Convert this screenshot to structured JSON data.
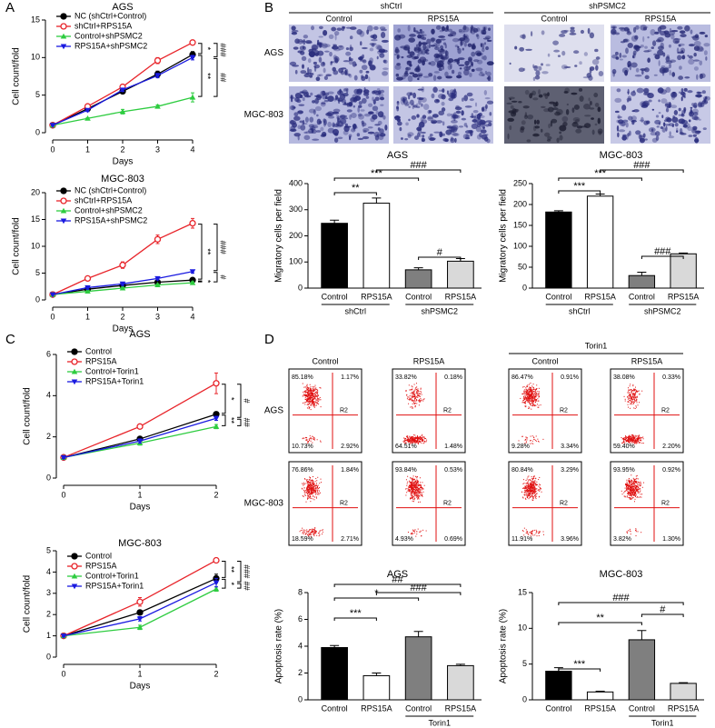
{
  "panel_labels": [
    "A",
    "B",
    "C",
    "D"
  ],
  "micrographs": {
    "groups": [
      "shCtrl",
      "shPSMC2"
    ],
    "columns": [
      "Control",
      "RPS15A",
      "Control",
      "RPS15A"
    ],
    "rows": [
      "AGS",
      "MGC-803"
    ]
  },
  "flow": {
    "group_label": "Torin1",
    "columns": [
      "Control",
      "RPS15A",
      "Control",
      "RPS15A"
    ],
    "gate_label": "R2",
    "rows": [
      {
        "label": "AGS",
        "plots": [
          [
            "85.18%",
            "1.17%",
            "10.73%",
            "2.92%"
          ],
          [
            "33.82%",
            "0.18%",
            "64.51%",
            "1.48%"
          ],
          [
            "86.47%",
            "0.91%",
            "9.28%",
            "3.34%"
          ],
          [
            "38.08%",
            "0.33%",
            "59.40%",
            "2.20%"
          ]
        ]
      },
      {
        "label": "MGC-803",
        "plots": [
          [
            "76.86%",
            "1.84%",
            "18.59%",
            "2.71%"
          ],
          [
            "93.84%",
            "0.53%",
            "4.93%",
            "0.69%"
          ],
          [
            "80.84%",
            "3.29%",
            "11.91%",
            "3.96%"
          ],
          [
            "93.95%",
            "0.92%",
            "3.82%",
            "1.30%"
          ]
        ]
      }
    ]
  },
  "chart_data": [
    {
      "type": "line",
      "title": "AGS",
      "x_label": "Days",
      "y_label": "Cell count/fold",
      "x": [
        0,
        1,
        2,
        3,
        4
      ],
      "xlim": [
        0,
        4
      ],
      "xticks": [
        0,
        1,
        2,
        3,
        4
      ],
      "ylim": [
        0,
        15
      ],
      "yticks": [
        0,
        5,
        10,
        15
      ],
      "series": [
        {
          "name": "NC (shCtrl+Control)",
          "color": "#000000",
          "marker": "circle",
          "values": [
            1,
            3.2,
            5.5,
            7.8,
            10.4
          ],
          "errors": [
            0.05,
            0.2,
            0.3,
            0.4,
            0.4
          ]
        },
        {
          "name": "shCtrl+RPS15A",
          "color": "#e8242a",
          "marker": "open-circle",
          "values": [
            1,
            3.5,
            6.1,
            9.6,
            12.0
          ],
          "errors": [
            0.05,
            0.2,
            0.3,
            0.4,
            0.3
          ]
        },
        {
          "name": "Control+shPSMC2",
          "color": "#2ecc40",
          "marker": "triangle-up",
          "values": [
            1,
            1.9,
            2.8,
            3.5,
            4.7
          ],
          "errors": [
            0.05,
            0.1,
            0.3,
            0.2,
            0.6
          ]
        },
        {
          "name": "RPS15A+shPSMC2",
          "color": "#1a1ae0",
          "marker": "triangle-down",
          "values": [
            1,
            3.0,
            5.7,
            7.6,
            10.0
          ],
          "errors": [
            0.05,
            0.2,
            0.2,
            0.3,
            0.3
          ]
        }
      ],
      "annotations": [
        "*",
        "###",
        "**",
        "##"
      ]
    },
    {
      "type": "line",
      "title": "MGC-803",
      "x_label": "Days",
      "y_label": "Cell count/fold",
      "x": [
        0,
        1,
        2,
        3,
        4
      ],
      "xlim": [
        0,
        4
      ],
      "xticks": [
        0,
        1,
        2,
        3,
        4
      ],
      "ylim": [
        0,
        20
      ],
      "yticks": [
        0,
        5,
        10,
        15,
        20
      ],
      "series": [
        {
          "name": "NC (shCtrl+Control)",
          "color": "#000000",
          "marker": "circle",
          "values": [
            1,
            2.0,
            2.7,
            3.3,
            3.7
          ],
          "errors": [
            0.05,
            0.2,
            0.2,
            0.2,
            0.2
          ]
        },
        {
          "name": "shCtrl+RPS15A",
          "color": "#e8242a",
          "marker": "open-circle",
          "values": [
            1,
            4.0,
            6.5,
            11.3,
            14.3
          ],
          "errors": [
            0.05,
            0.3,
            0.6,
            0.8,
            0.9
          ]
        },
        {
          "name": "Control+shPSMC2",
          "color": "#2ecc40",
          "marker": "triangle-up",
          "values": [
            1,
            1.6,
            2.2,
            2.8,
            3.2
          ],
          "errors": [
            0.05,
            0.2,
            0.2,
            0.2,
            0.2
          ]
        },
        {
          "name": "RPS15A+shPSMC2",
          "color": "#1a1ae0",
          "marker": "triangle-down",
          "values": [
            1,
            2.3,
            3.0,
            4.0,
            5.3
          ],
          "errors": [
            0.05,
            0.3,
            0.3,
            0.3,
            0.3
          ]
        }
      ],
      "annotations": [
        "**",
        "*",
        "###",
        "#"
      ]
    },
    {
      "type": "bar",
      "title": "AGS",
      "y_label": "Migratory cells per field",
      "categories": [
        "Control",
        "RPS15A",
        "Control",
        "RPS15A"
      ],
      "group_labels": [
        "shCtrl",
        "shPSMC2"
      ],
      "values": [
        248,
        325,
        70,
        103
      ],
      "errors": [
        12,
        20,
        8,
        10
      ],
      "colors": [
        "#000000",
        "#ffffff",
        "#7f7f7f",
        "#d9d9d9"
      ],
      "ylim": [
        0,
        400
      ],
      "yticks": [
        0,
        100,
        200,
        300,
        400
      ],
      "annotations": [
        "###",
        "***",
        "**",
        "#"
      ]
    },
    {
      "type": "bar",
      "title": "MGC-803",
      "y_label": "Migratory cells per field",
      "categories": [
        "Control",
        "RPS15A",
        "Control",
        "RPS15A"
      ],
      "group_labels": [
        "shCtrl",
        "shPSMC2"
      ],
      "values": [
        182,
        220,
        30,
        82
      ],
      "errors": [
        3,
        5,
        8,
        2
      ],
      "colors": [
        "#000000",
        "#ffffff",
        "#7f7f7f",
        "#d9d9d9"
      ],
      "ylim": [
        0,
        250
      ],
      "yticks": [
        0,
        50,
        100,
        150,
        200,
        250
      ],
      "annotations": [
        "###",
        "***",
        "***",
        "###"
      ]
    },
    {
      "type": "line",
      "title": "AGS",
      "x_label": "Days",
      "y_label": "Cell count/fold",
      "x": [
        0,
        1,
        2
      ],
      "xlim": [
        0,
        2
      ],
      "xticks": [
        0,
        1,
        2
      ],
      "ylim": [
        0,
        6
      ],
      "yticks": [
        0,
        2,
        4,
        6
      ],
      "series": [
        {
          "name": "Control",
          "color": "#000000",
          "marker": "circle",
          "values": [
            1,
            1.9,
            3.1
          ],
          "errors": [
            0.05,
            0.1,
            0.1
          ]
        },
        {
          "name": "RPS15A",
          "color": "#e8242a",
          "marker": "open-circle",
          "values": [
            1,
            2.5,
            4.6
          ],
          "errors": [
            0.05,
            0.1,
            0.5
          ]
        },
        {
          "name": "Control+Torin1",
          "color": "#2ecc40",
          "marker": "triangle-up",
          "values": [
            1,
            1.7,
            2.5
          ],
          "errors": [
            0.05,
            0.1,
            0.1
          ]
        },
        {
          "name": "RPS15A+Torin1",
          "color": "#1a1ae0",
          "marker": "triangle-down",
          "values": [
            1,
            1.8,
            2.9
          ],
          "errors": [
            0.05,
            0.1,
            0.1
          ]
        }
      ],
      "annotations": [
        "*",
        "#",
        "**",
        "##"
      ]
    },
    {
      "type": "line",
      "title": "MGC-803",
      "x_label": "Days",
      "y_label": "Cell count/fold",
      "x": [
        0,
        1,
        2
      ],
      "xlim": [
        0,
        2
      ],
      "xticks": [
        0,
        1,
        2
      ],
      "ylim": [
        0,
        5
      ],
      "yticks": [
        0,
        1,
        2,
        3,
        4,
        5
      ],
      "series": [
        {
          "name": "Control",
          "color": "#000000",
          "marker": "circle",
          "values": [
            1,
            2.1,
            3.7
          ],
          "errors": [
            0.05,
            0.1,
            0.2
          ]
        },
        {
          "name": "RPS15A",
          "color": "#e8242a",
          "marker": "open-circle",
          "values": [
            1,
            2.6,
            4.55
          ],
          "errors": [
            0.05,
            0.2,
            0.1
          ]
        },
        {
          "name": "Control+Torin1",
          "color": "#2ecc40",
          "marker": "triangle-up",
          "values": [
            1,
            1.4,
            3.2
          ],
          "errors": [
            0.05,
            0.1,
            0.1
          ]
        },
        {
          "name": "RPS15A+Torin1",
          "color": "#1a1ae0",
          "marker": "triangle-down",
          "values": [
            1,
            1.8,
            3.5
          ],
          "errors": [
            0.05,
            0.1,
            0.2
          ]
        }
      ],
      "annotations": [
        "**",
        "*",
        "###",
        "##"
      ]
    },
    {
      "type": "bar",
      "title": "AGS",
      "y_label": "Apoptosis rate (%)",
      "categories": [
        "Control",
        "RPS15A",
        "Control",
        "RPS15A"
      ],
      "group_labels": [
        null,
        "Torin1"
      ],
      "values": [
        3.9,
        1.8,
        4.7,
        2.55
      ],
      "errors": [
        0.15,
        0.2,
        0.4,
        0.1
      ],
      "colors": [
        "#000000",
        "#ffffff",
        "#7f7f7f",
        "#d9d9d9"
      ],
      "ylim": [
        0,
        8
      ],
      "yticks": [
        0,
        2,
        4,
        6,
        8
      ],
      "annotations": [
        "##",
        "###",
        "*",
        "***"
      ]
    },
    {
      "type": "bar",
      "title": "MGC-803",
      "y_label": "Apoptosis rate (%)",
      "categories": [
        "Control",
        "RPS15A",
        "Control",
        "RPS15A"
      ],
      "group_labels": [
        null,
        "Torin1"
      ],
      "values": [
        4.0,
        1.1,
        8.4,
        2.3
      ],
      "errors": [
        0.5,
        0.1,
        1.3,
        0.1
      ],
      "colors": [
        "#000000",
        "#ffffff",
        "#7f7f7f",
        "#d9d9d9"
      ],
      "ylim": [
        0,
        15
      ],
      "yticks": [
        0,
        5,
        10,
        15
      ],
      "annotations": [
        "###",
        "#",
        "**",
        "***"
      ]
    }
  ]
}
